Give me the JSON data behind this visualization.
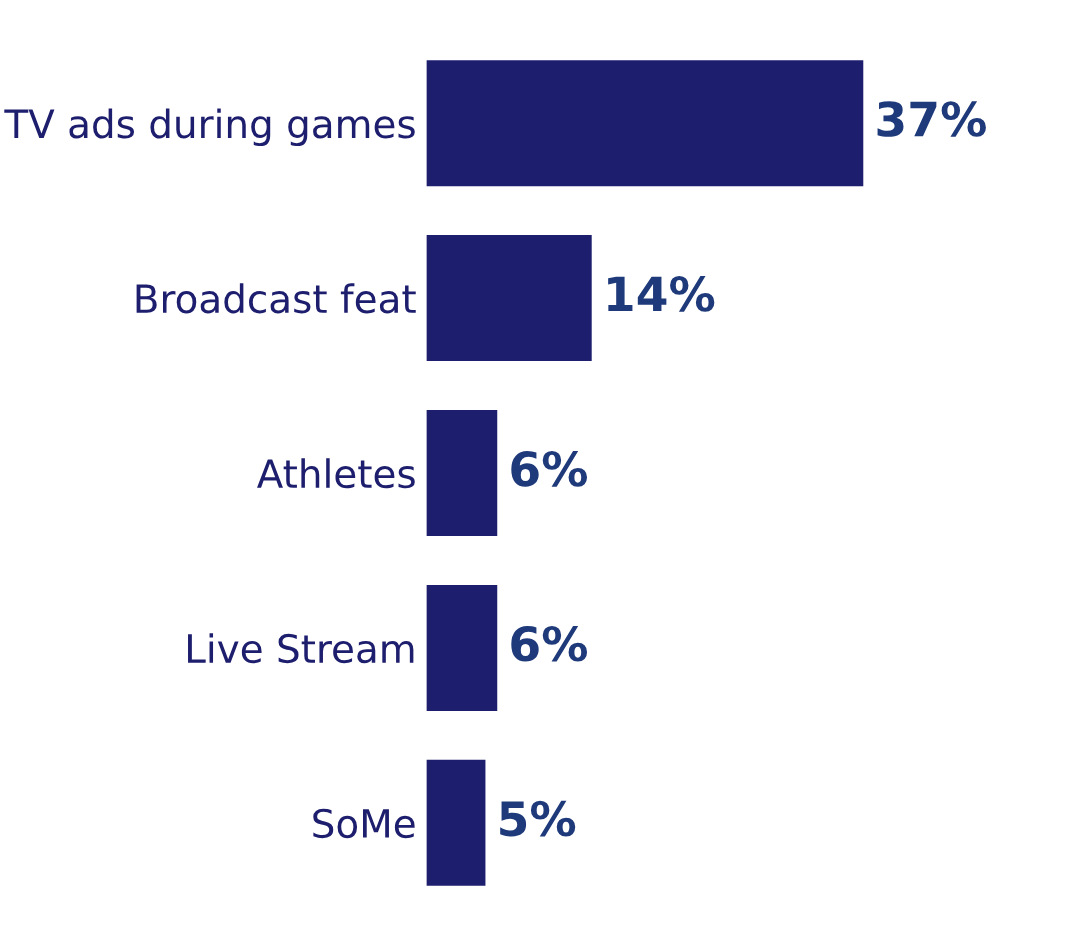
{
  "chart_data": {
    "type": "bar",
    "orientation": "horizontal",
    "categories": [
      "TV ads during games",
      "Broadcast feat",
      "Athletes",
      "Live Stream",
      "SoMe"
    ],
    "values": [
      37,
      14,
      6,
      6,
      5
    ],
    "value_labels": [
      "37%",
      "14%",
      "6%",
      "6%",
      "5%"
    ],
    "color": "#1e1e6e",
    "grid": false,
    "legend": false
  }
}
